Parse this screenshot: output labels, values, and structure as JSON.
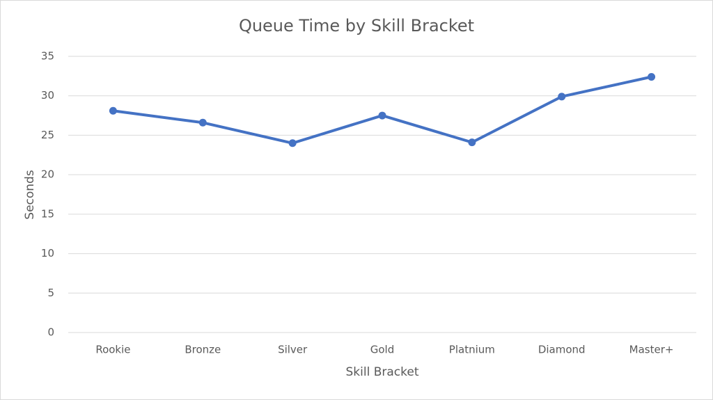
{
  "chart_data": {
    "type": "line",
    "title": "Queue Time by Skill Bracket",
    "x_label": "Skill Bracket",
    "y_label": "Seconds",
    "categories": [
      "Rookie",
      "Bronze",
      "Silver",
      "Gold",
      "Platnium",
      "Diamond",
      "Master+"
    ],
    "values": [
      28.1,
      26.6,
      24.0,
      27.5,
      24.1,
      29.9,
      32.4
    ],
    "color": "#4472c4",
    "ylim": [
      0,
      35
    ],
    "yticks": [
      0,
      5,
      10,
      15,
      20,
      25,
      30,
      35
    ],
    "grid": true
  }
}
